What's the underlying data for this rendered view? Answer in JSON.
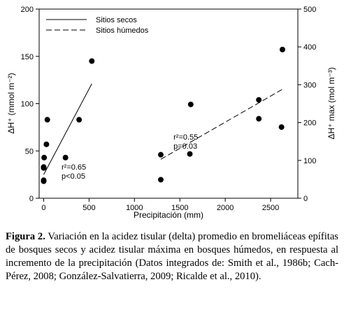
{
  "chart_data": {
    "type": "scatter",
    "xlabel": "Precipitación (mm)",
    "ylabel_left": "ΔH⁺ (mmol m⁻²)",
    "ylabel_right": "ΔH⁺ max (mol m⁻³)",
    "xlim": [
      -50,
      2800
    ],
    "ylim_left": [
      0,
      200
    ],
    "ylim_right": [
      0,
      500
    ],
    "x_ticks": [
      "0",
      "500",
      "1000",
      "1500",
      "2000",
      "2500"
    ],
    "y_ticks_left": [
      "0",
      "50",
      "100",
      "150",
      "200"
    ],
    "y_ticks_right": [
      "0",
      "100",
      "200",
      "300",
      "400",
      "500"
    ],
    "grid": false,
    "legend_position": "top-left",
    "series": [
      {
        "name": "Sitios secos",
        "axis": "left",
        "line_style": "solid",
        "x": [
          0,
          0,
          0,
          0,
          5,
          30,
          40,
          240,
          390,
          530
        ],
        "y": [
          19,
          18,
          33,
          32,
          43,
          57,
          83,
          43,
          83,
          145
        ],
        "trend_x": [
          0,
          530
        ],
        "trend_y": [
          25,
          121
        ],
        "annotation": [
          "r²=0.65",
          "p<0.05"
        ]
      },
      {
        "name": "Sitios húmedos",
        "axis": "right",
        "line_style": "dashed",
        "x": [
          1290,
          1290,
          1610,
          1620,
          2370,
          2370,
          2620,
          2630
        ],
        "y": [
          115,
          49,
          117,
          248,
          260,
          210,
          188,
          393
        ],
        "trend_x": [
          1290,
          2630
        ],
        "trend_y": [
          103,
          288
        ],
        "annotation": [
          "r²=0.55",
          "p=0.03"
        ]
      }
    ]
  },
  "caption": {
    "label": "Figura 2.",
    "text": " Variación en la acidez tisular (delta) promedio en bromeliáceas epífitas de bosques secos y acidez tisular máxima en bosques húmedos, en respuesta al incremento de la precipitación (Datos integrados de: Smith et al., 1986b; Cach-Pérez, 2008; González-Salvatierra, 2009; Ricalde et al., 2010)."
  }
}
